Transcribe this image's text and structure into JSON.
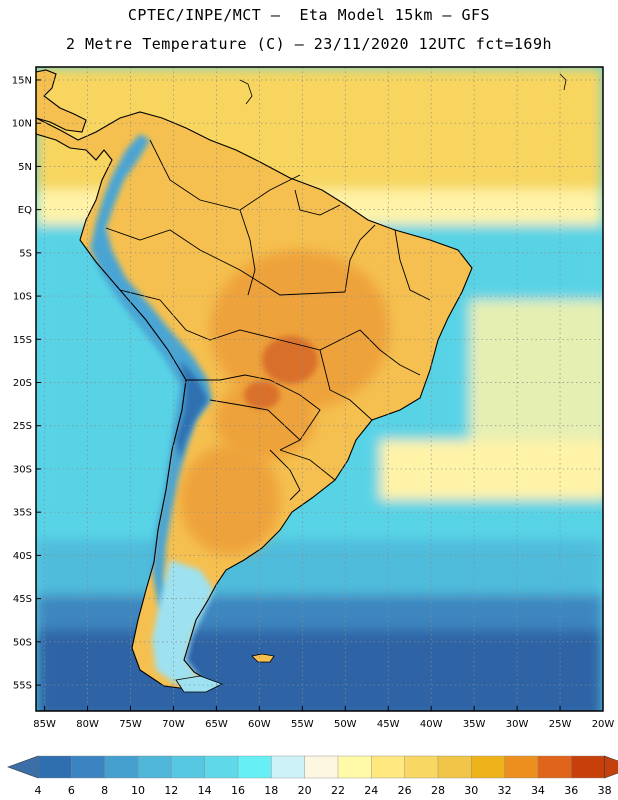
{
  "header": {
    "line1": "CPTEC/INPE/MCT –  Eta Model 15km – GFS",
    "line2": "2 Metre Temperature (C) – 23/11/2020 12UTC fct=169h"
  },
  "map": {
    "lon_range": [
      -86,
      -20
    ],
    "lat_range": [
      -58,
      16.5
    ],
    "lat_ticks": [
      {
        "value": 15,
        "label": "15N"
      },
      {
        "value": 10,
        "label": "10N"
      },
      {
        "value": 5,
        "label": "5N"
      },
      {
        "value": 0,
        "label": "EQ"
      },
      {
        "value": -5,
        "label": "5S"
      },
      {
        "value": -10,
        "label": "10S"
      },
      {
        "value": -15,
        "label": "15S"
      },
      {
        "value": -20,
        "label": "20S"
      },
      {
        "value": -25,
        "label": "25S"
      },
      {
        "value": -30,
        "label": "30S"
      },
      {
        "value": -35,
        "label": "35S"
      },
      {
        "value": -40,
        "label": "40S"
      },
      {
        "value": -45,
        "label": "45S"
      },
      {
        "value": -50,
        "label": "50S"
      },
      {
        "value": -55,
        "label": "55S"
      }
    ],
    "lon_ticks": [
      {
        "value": -85,
        "label": "85W"
      },
      {
        "value": -80,
        "label": "80W"
      },
      {
        "value": -75,
        "label": "75W"
      },
      {
        "value": -70,
        "label": "70W"
      },
      {
        "value": -65,
        "label": "65W"
      },
      {
        "value": -60,
        "label": "60W"
      },
      {
        "value": -55,
        "label": "55W"
      },
      {
        "value": -50,
        "label": "50W"
      },
      {
        "value": -45,
        "label": "45W"
      },
      {
        "value": -40,
        "label": "40W"
      },
      {
        "value": -35,
        "label": "35W"
      },
      {
        "value": -30,
        "label": "30W"
      },
      {
        "value": -25,
        "label": "25W"
      },
      {
        "value": -20,
        "label": "20W"
      }
    ]
  },
  "colorbar": {
    "labels": [
      "4",
      "6",
      "8",
      "10",
      "12",
      "14",
      "16",
      "18",
      "20",
      "22",
      "24",
      "26",
      "28",
      "30",
      "32",
      "34",
      "36",
      "38"
    ],
    "colors": [
      "#2f6fb0",
      "#3b84c1",
      "#45a0cf",
      "#4fb6da",
      "#56c8e2",
      "#5fd9ea",
      "#66f0f6",
      "#cdf3f8",
      "#fdf7e2",
      "#fffaa8",
      "#ffe880",
      "#f8d763",
      "#f0c548",
      "#eeb31a",
      "#ec8f1e",
      "#e0651a",
      "#c73f0b"
    ],
    "low_color": "#3c6fa8",
    "high_color": "#c4410c"
  },
  "palette": {
    "ocean_deep": "#2f64a6",
    "ocean_mid": "#3d86c0",
    "ocean_cool": "#4fbcdc",
    "ocean_warm": "#58d3e6",
    "sea_tropical": "#f7d55e",
    "sea_pale": "#fff3a8",
    "land_hot": "#eea23b",
    "land_warm": "#f5c04f",
    "land_hottest": "#d9702a",
    "andes": "#4aa5d4",
    "andes_cold": "#2f6fb0",
    "patagonia": "#9ee1f0",
    "coast_line": "#000000",
    "grid": "#8c8c8c"
  },
  "chart_data": {
    "type": "map",
    "title": "2 Metre Temperature (C) – 23/11/2020 12UTC fct=169h",
    "model": "Eta Model 15km – GFS",
    "variable": "2 Metre Temperature",
    "units": "C",
    "color_levels": [
      4,
      6,
      8,
      10,
      12,
      14,
      16,
      18,
      20,
      22,
      24,
      26,
      28,
      30,
      32,
      34,
      36,
      38
    ]
  }
}
